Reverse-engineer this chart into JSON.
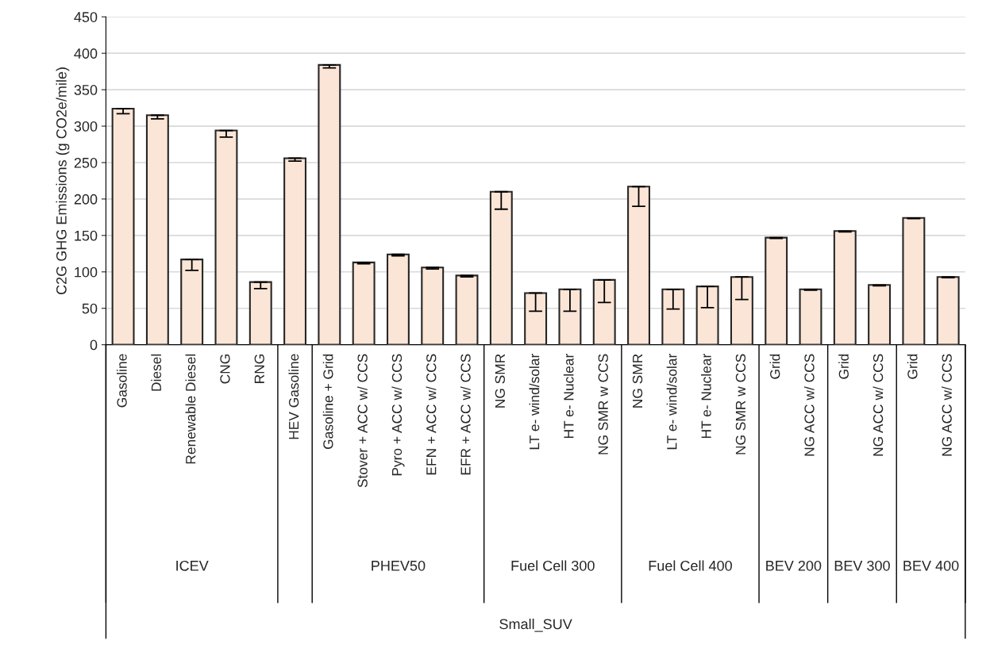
{
  "chart_data": {
    "type": "bar",
    "ylabel": "C2G GHG Emissions (g CO2e/mile)",
    "categories": [
      "Gasoline",
      "Diesel",
      "Renewable Diesel",
      "CNG",
      "RNG",
      "HEV Gasoline",
      "Gasoline + Grid",
      "Stover + ACC w/ CCS",
      "Pyro + ACC w/ CCS",
      "EFN + ACC w/ CCS",
      "EFR + ACC w/ CCS",
      "NG SMR",
      "LT e- wind/solar",
      "HT e- Nuclear",
      "NG SMR w CCS",
      "NG SMR",
      "LT e- wind/solar",
      "HT e- Nuclear",
      "NG SMR w CCS",
      "Grid",
      "NG ACC w/ CCS",
      "Grid",
      "NG ACC w/ CCS",
      "Grid",
      "NG ACC w/ CCS"
    ],
    "series": [
      {
        "color": "#fbe5d6",
        "values": [
          324,
          315,
          117,
          294,
          86,
          256,
          384,
          113,
          124,
          106,
          95,
          210,
          71,
          76,
          89,
          217,
          76,
          80,
          93,
          147,
          76,
          156,
          82,
          174,
          93
        ],
        "errors": [
          [
            317,
            324
          ],
          [
            310,
            315
          ],
          [
            102,
            117
          ],
          [
            285,
            294
          ],
          [
            77,
            86
          ],
          [
            252,
            256
          ],
          [
            380,
            384
          ],
          [
            111,
            113
          ],
          [
            122,
            124
          ],
          [
            104,
            106
          ],
          [
            93,
            95
          ],
          [
            186,
            210
          ],
          [
            46,
            71
          ],
          [
            46,
            76
          ],
          [
            58,
            89
          ],
          [
            190,
            217
          ],
          [
            49,
            76
          ],
          [
            51,
            80
          ],
          [
            62,
            93
          ],
          [
            146,
            147
          ],
          [
            75,
            76
          ],
          [
            155,
            156
          ],
          [
            81,
            82
          ],
          [
            173,
            174
          ],
          [
            92,
            93
          ]
        ]
      }
    ],
    "ylim": [
      0,
      450
    ],
    "yticks": [
      0,
      50,
      100,
      150,
      200,
      250,
      300,
      350,
      400,
      450
    ],
    "grid": "y",
    "annotations": [
      "ICEV",
      "PHEV50",
      "Fuel Cell 300",
      "Fuel Cell 400",
      "BEV 200",
      "BEV 300",
      "BEV 400",
      "Small_SUV"
    ]
  }
}
